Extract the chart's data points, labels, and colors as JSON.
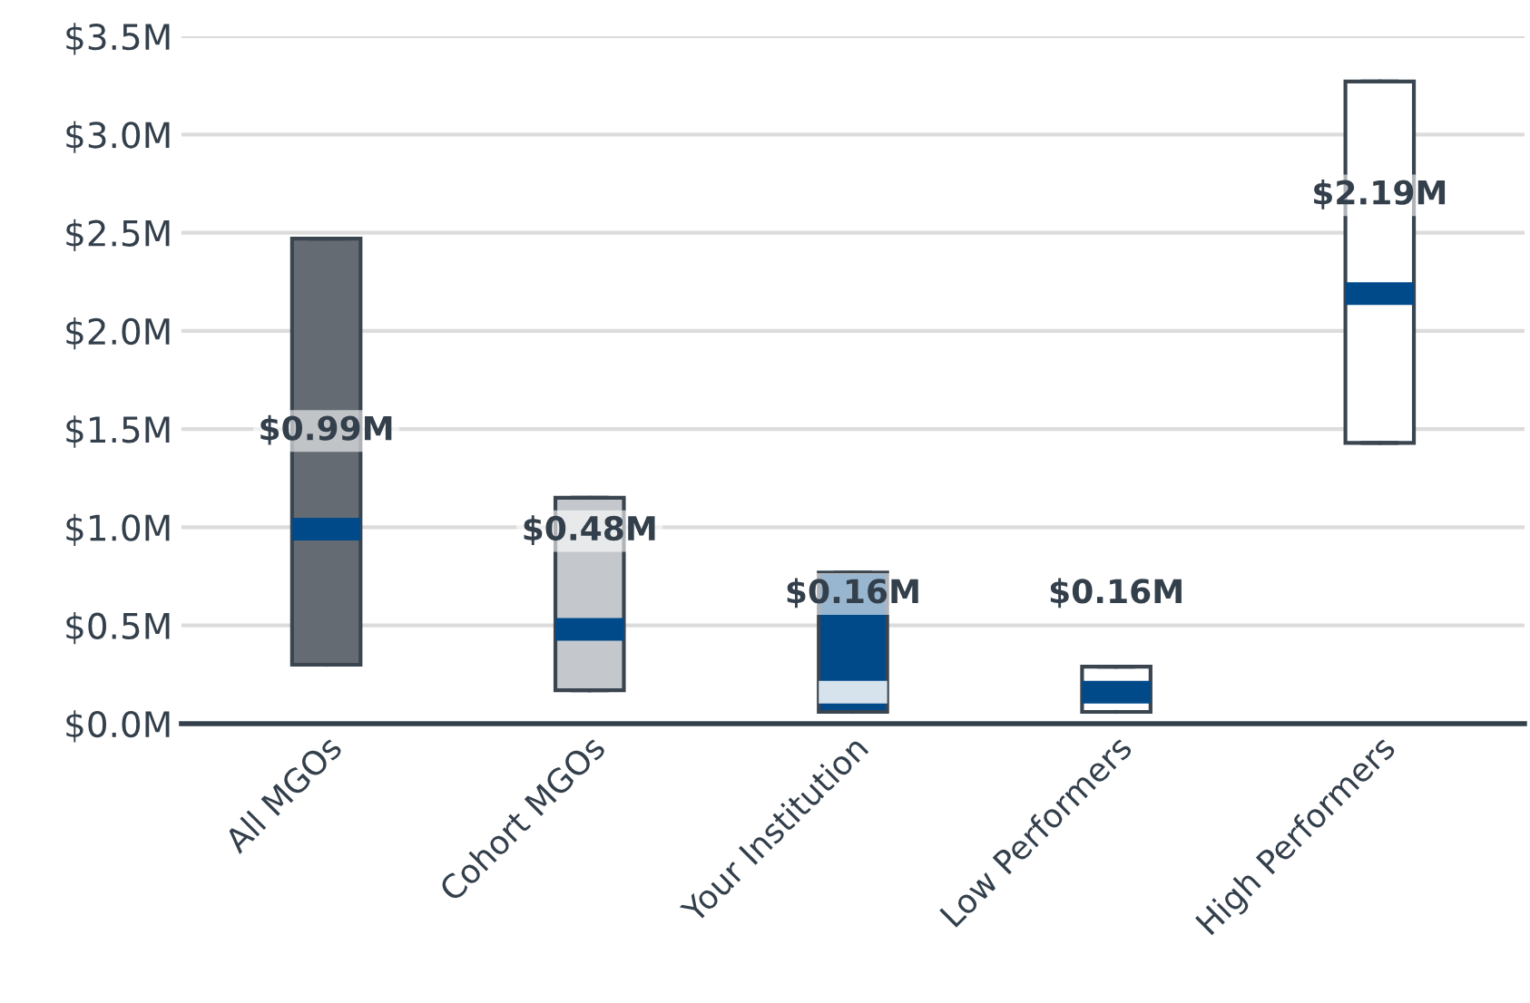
{
  "chart_data": {
    "type": "box",
    "categories": [
      "All MGOs",
      "Cohort MGOs",
      "Your Institution",
      "Low Performers",
      "High Performers"
    ],
    "series": [
      {
        "color": "#004a8a",
        "colors": [
          "#646b73",
          "#c4c8cc",
          "#004a8a",
          "#ffffff",
          "#ffffff"
        ],
        "value_labels": [
          "$0.99M",
          "$0.48M",
          "$0.16M",
          "$0.16M",
          "$2.19M"
        ],
        "boxes": [
          {
            "low": 0.3,
            "q1": 0.3,
            "median": 0.99,
            "q3": 2.47,
            "high": 2.47
          },
          {
            "low": 0.17,
            "q1": 0.17,
            "median": 0.48,
            "q3": 1.15,
            "high": 1.15
          },
          {
            "low": 0.06,
            "q1": 0.06,
            "median": 0.16,
            "q3": 0.77,
            "high": 0.77
          },
          {
            "low": 0.06,
            "q1": 0.06,
            "median": 0.16,
            "q3": 0.29,
            "high": 0.29
          },
          {
            "low": 1.43,
            "q1": 1.43,
            "median": 2.19,
            "q3": 3.27,
            "high": 3.27
          }
        ]
      }
    ],
    "ylim": [
      0,
      3.5
    ],
    "yticks": [
      {
        "value": 0,
        "label": "$0.0M"
      },
      {
        "value": 0.5,
        "label": "$0.5M"
      },
      {
        "value": 1.0,
        "label": "$1.0M"
      },
      {
        "value": 1.5,
        "label": "$1.5M"
      },
      {
        "value": 2.0,
        "label": "$2.0M"
      },
      {
        "value": 2.5,
        "label": "$2.5M"
      },
      {
        "value": 3.0,
        "label": "$3.0M"
      },
      {
        "value": 3.5,
        "label": "$3.5M"
      }
    ],
    "grid": "y"
  }
}
